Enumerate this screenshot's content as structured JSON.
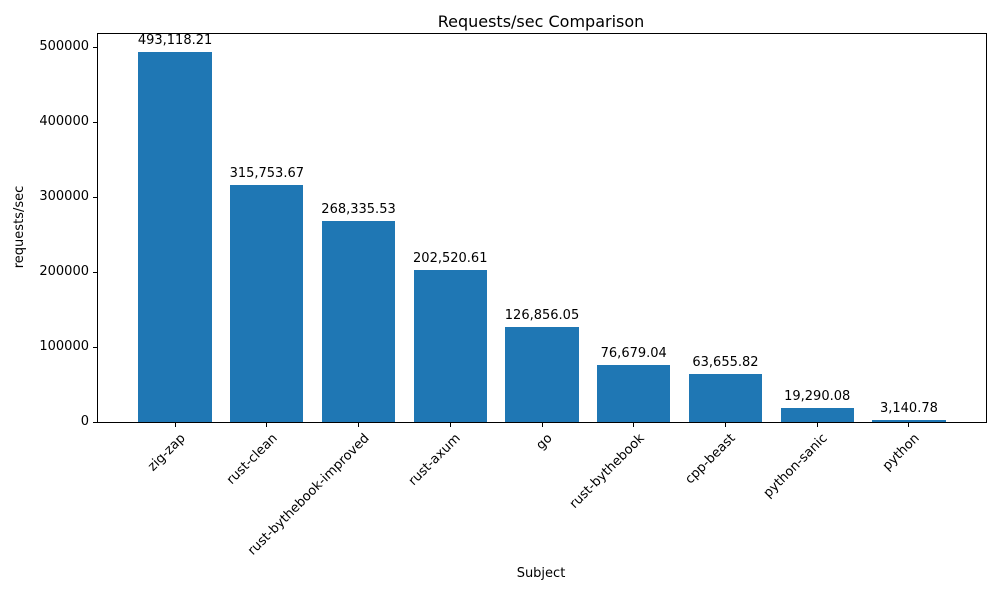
{
  "chart_data": {
    "type": "bar",
    "title": "Requests/sec Comparison",
    "xlabel": "Subject",
    "ylabel": "requests/sec",
    "categories": [
      "zig-zap",
      "rust-clean",
      "rust-bythebook-improved",
      "rust-axum",
      "go",
      "rust-bythebook",
      "cpp-beast",
      "python-sanic",
      "python"
    ],
    "values": [
      493118.21,
      315753.67,
      268335.53,
      202520.61,
      126856.05,
      76679.04,
      63655.82,
      19290.08,
      3140.78
    ],
    "value_labels": [
      "493,118.21",
      "315,753.67",
      "268,335.53",
      "202,520.61",
      "126,856.05",
      "76,679.04",
      "63,655.82",
      "19,290.08",
      "3,140.78"
    ],
    "yticks": [
      0,
      100000,
      200000,
      300000,
      400000,
      500000
    ],
    "ytick_labels": [
      "0",
      "100000",
      "200000",
      "300000",
      "400000",
      "500000"
    ],
    "ylim": [
      0,
      517774.12
    ],
    "bar_color": "#1f77b4",
    "grid": false,
    "legend_position": "none",
    "x_tick_rotation_deg": 45
  }
}
